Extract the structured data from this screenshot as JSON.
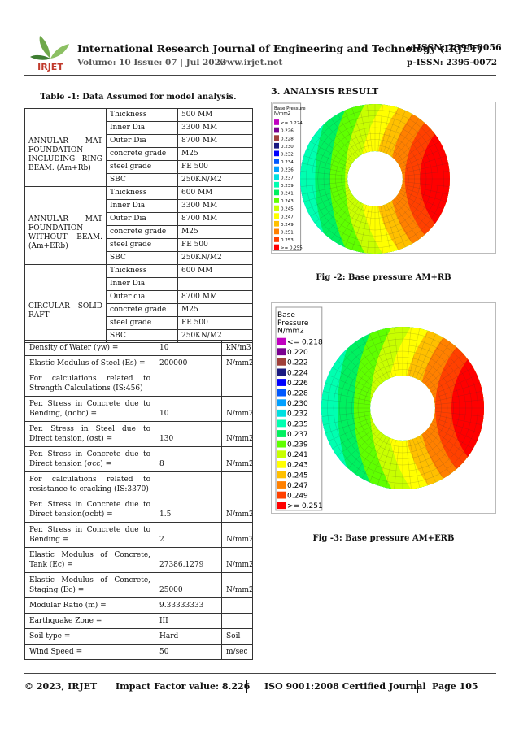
{
  "header": {
    "logo": "IRJET",
    "journal": "International Research Journal of Engineering and Technology (IRJET)",
    "eissn": "e-ISSN: 2395-0056",
    "volume": "Volume: 10 Issue: 07 | Jul 2023",
    "website": "www.irjet.net",
    "pissn": "p-ISSN: 2395-0072"
  },
  "table1": {
    "caption": "Table -1: Data Assumed for model analysis.",
    "groups": [
      {
        "label": "ANNULAR MAT FOUNDATION INCLUDING RING BEAM. (Am+Rb)",
        "rows": [
          [
            "Thickness",
            "500 MM"
          ],
          [
            "Inner Dia",
            "3300 MM"
          ],
          [
            "Outer Dia",
            "8700 MM"
          ],
          [
            "concrete grade",
            "M25"
          ],
          [
            "steel grade",
            "FE 500"
          ],
          [
            "SBC",
            "250KN/M2"
          ]
        ]
      },
      {
        "label": "ANNULAR MAT FOUNDATION WITHOUT BEAM.(Am+ERb)",
        "rows": [
          [
            "Thickness",
            "600 MM"
          ],
          [
            "Inner Dia",
            "3300 MM"
          ],
          [
            "Outer Dia",
            "8700 MM"
          ],
          [
            "concrete grade",
            "M25"
          ],
          [
            "steel grade",
            "FE 500"
          ],
          [
            "SBC",
            "250KN/M2"
          ]
        ]
      },
      {
        "label": "CIRCULAR SOLID RAFT",
        "rows": [
          [
            "Thickness",
            "600 MM"
          ],
          [
            "Inner Dia"
          ],
          [
            "Outer dia",
            "8700 MM"
          ],
          [
            "concrete grade",
            "M25"
          ],
          [
            "steel grade",
            "FE 500"
          ],
          [
            "SBC",
            "250KN/M2"
          ]
        ]
      }
    ]
  },
  "table2": {
    "rows": [
      [
        "Density of Water (γw) =",
        "10",
        "kN/m3"
      ],
      [
        "Elastic Modulus of Steel (Es) =",
        "200000",
        "N/mm2"
      ],
      [
        "For calculations related to Strength Calculations (IS:456)"
      ],
      [
        "Per. Stress in Concrete due to Bending, (σcbc) =",
        "10",
        "N/mm2"
      ],
      [
        "Per. Stress in Steel due to Direct tension, (σst) =",
        "130",
        "N/mm2"
      ],
      [
        "Per. Stress in Concrete due to Direct tension (σcc) =",
        "8",
        "N/mm2"
      ],
      [
        "For calculations related to resistance to cracking (IS:3370)"
      ],
      [
        "Per. Stress in Concrete due to Direct tension(σcbt) =",
        "1.5",
        "N/mm2"
      ],
      [
        "Per. Stress in Concrete due to Bending =",
        "2",
        "N/mm2"
      ],
      [
        "Elastic Modulus of Concrete, Tank (Ec) =",
        "27386.1279",
        "N/mm2"
      ],
      [
        "Elastic Modulus of Concrete, Staging (Ec) =",
        "25000",
        "N/mm2"
      ],
      [
        "Modular Ratio (m) =",
        "9.33333333"
      ],
      [
        "Earthquake Zone =",
        "III"
      ],
      [
        "Soil type =",
        "Hard",
        "Soil"
      ],
      [
        "Wind Speed =",
        "50",
        "m/sec"
      ]
    ]
  },
  "section": {
    "heading": "3. ANALYSIS RESULT"
  },
  "figures": [
    {
      "legend_title": [
        "Base Pressure",
        "N/mm2"
      ],
      "legend": [
        "<= 0.224",
        "0.226",
        "0.228",
        "0.230",
        "0.232",
        "0.234",
        "0.236",
        "0.237",
        "0.239",
        "0.241",
        "0.243",
        "0.245",
        "0.247",
        "0.249",
        "0.251",
        "0.253",
        ">= 0.255"
      ],
      "caption": "Fig -2: Base pressure AM+RB"
    },
    {
      "legend_title": [
        "Base",
        "Pressure",
        "N/mm2"
      ],
      "legend": [
        "<= 0.218",
        "0.220",
        "0.222",
        "0.224",
        "0.226",
        "0.228",
        "0.230",
        "0.232",
        "0.235",
        "0.237",
        "0.239",
        "0.241",
        "0.243",
        "0.245",
        "0.247",
        "0.249",
        ">= 0.251"
      ],
      "caption": "Fig -3: Base pressure AM+ERB"
    }
  ],
  "footer": {
    "copyright": "© 2023, IRJET",
    "impact": "Impact Factor value: 8.226",
    "iso": "ISO 9001:2008 Certified Journal",
    "page": "Page 105"
  }
}
